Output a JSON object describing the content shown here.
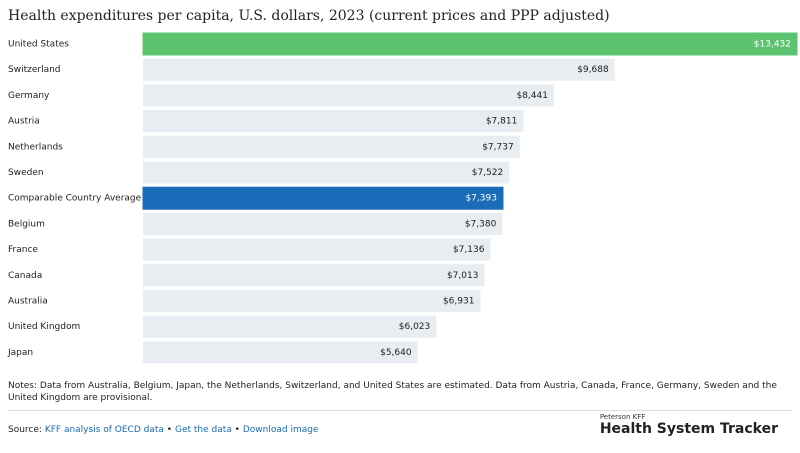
{
  "chart_data": {
    "type": "bar",
    "orientation": "horizontal",
    "title": "Health expenditures per capita, U.S. dollars, 2023 (current prices and PPP adjusted)",
    "categories": [
      "United States",
      "Switzerland",
      "Germany",
      "Austria",
      "Netherlands",
      "Sweden",
      "Comparable Country Average",
      "Belgium",
      "France",
      "Canada",
      "Australia",
      "United Kingdom",
      "Japan"
    ],
    "values": [
      13432,
      9688,
      8441,
      7811,
      7737,
      7522,
      7393,
      7380,
      7136,
      7013,
      6931,
      6023,
      5640
    ],
    "value_labels": [
      "$13,432",
      "$9,688",
      "$8,441",
      "$7,811",
      "$7,737",
      "$7,522",
      "$7,393",
      "$7,380",
      "$7,136",
      "$7,013",
      "$6,931",
      "$6,023",
      "$5,640"
    ],
    "colors": [
      "#5cc470",
      "#e8edf1",
      "#e8edf1",
      "#e8edf1",
      "#e8edf1",
      "#e8edf1",
      "#1a6cb9",
      "#e8edf1",
      "#e8edf1",
      "#e8edf1",
      "#e8edf1",
      "#e8edf1",
      "#e8edf1"
    ]
  },
  "notes": "Notes: Data from Australia, Belgium, Japan, the Netherlands, Switzerland, and United States are estimated. Data from Austria, Canada, France, Germany, Sweden and the United Kingdom are provisional.",
  "source": {
    "label": "Source:",
    "links": [
      "KFF analysis of OECD data",
      "Get the data",
      "Download image"
    ],
    "separator": "•"
  },
  "logo": {
    "top": [
      "Peterson",
      "KFF"
    ],
    "name": "Health System Tracker"
  }
}
